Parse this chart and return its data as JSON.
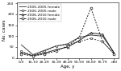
{
  "age_labels": [
    "0-9",
    "15-19",
    "20-29",
    "30-39",
    "40-49",
    "50-59",
    "60-69",
    "70-79",
    ">80"
  ],
  "series": [
    {
      "label": "2000-2005 female",
      "values": [
        60,
        15,
        35,
        55,
        65,
        95,
        105,
        100,
        25
      ],
      "color": "#444444",
      "linestyle": "-",
      "marker": "None",
      "markersize": 2.0,
      "linewidth": 0.7,
      "dashes": []
    },
    {
      "label": "2000-2005 male",
      "values": [
        30,
        12,
        30,
        55,
        60,
        75,
        90,
        75,
        18
      ],
      "color": "#444444",
      "linestyle": "--",
      "marker": "s",
      "markersize": 2.0,
      "linewidth": 0.7,
      "dashes": [
        2,
        1.5
      ]
    },
    {
      "label": "2006-2010 female",
      "values": [
        25,
        10,
        22,
        38,
        50,
        80,
        115,
        108,
        22
      ],
      "color": "#222222",
      "linestyle": "-",
      "marker": "^",
      "markersize": 2.0,
      "linewidth": 0.7,
      "dashes": []
    },
    {
      "label": "2006-2010 male",
      "values": [
        18,
        8,
        18,
        32,
        55,
        95,
        230,
        75,
        18
      ],
      "color": "#222222",
      "linestyle": "--",
      "marker": "o",
      "markersize": 2.0,
      "linewidth": 0.7,
      "dashes": [
        2,
        1.5
      ]
    }
  ],
  "ylabel": "No. cases",
  "xlabel": "Age, y",
  "ylim": [
    0,
    255
  ],
  "yticks": [
    0,
    50,
    100,
    150,
    200,
    250
  ],
  "background_color": "#ffffff",
  "legend_fontsize": 3.2,
  "axis_fontsize": 4.0,
  "tick_fontsize": 3.2
}
